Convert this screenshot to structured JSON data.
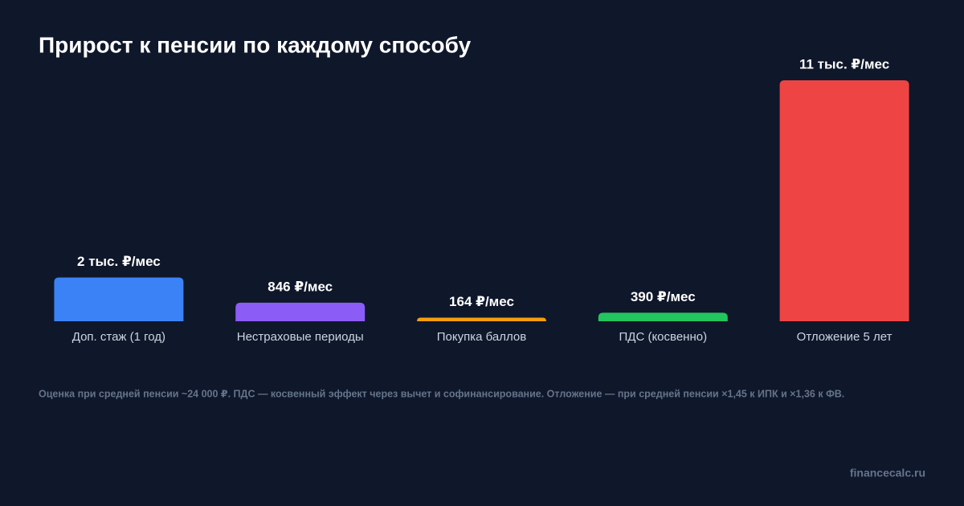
{
  "chart_data": {
    "type": "bar",
    "title": "Прирост к пенсии по каждому способу",
    "categories": [
      "Доп. стаж (1 год)",
      "Нестраховые периоды",
      "Покупка баллов",
      "ПДС (косвенно)",
      "Отложение 5 лет"
    ],
    "values": [
      2000,
      846,
      164,
      390,
      11000
    ],
    "value_labels": [
      "2 тыс. ₽/мес",
      "846 ₽/мес",
      "164 ₽/мес",
      "390 ₽/мес",
      "11 тыс. ₽/мес"
    ],
    "colors": [
      "#3b82f6",
      "#8b5cf6",
      "#f59e0b",
      "#22c55e",
      "#ef4444"
    ],
    "footnote": "Оценка при средней пенсии ~24 000 ₽. ПДС — косвенный эффект через вычет и софинансирование. Отложение — при средней пенсии ×1,45 к ИПК и ×1,36 к ФВ.",
    "source": "financecalc.ru"
  }
}
